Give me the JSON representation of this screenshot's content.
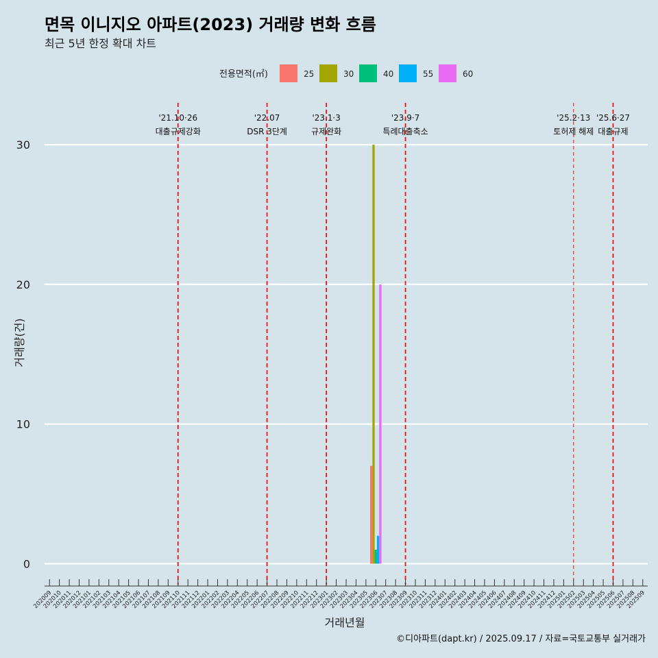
{
  "chart_data": {
    "type": "bar",
    "title": "면목 이니지오 아파트(2023) 거래량 변화 흐름",
    "subtitle": "최근 5년 한정 확대 차트",
    "xlabel": "거래년월",
    "ylabel": "거래량(건)",
    "ylim": [
      -1.5,
      33
    ],
    "yticks": [
      0,
      10,
      20,
      30
    ],
    "caption": "©디아파트(dapt.kr) / 2025.09.17 / 자료=국토교통부 실거래가",
    "legend": {
      "title": "전용면적(㎡)",
      "position": "top"
    },
    "categories": [
      "202009",
      "202010",
      "202011",
      "202012",
      "202101",
      "202102",
      "202103",
      "202104",
      "202105",
      "202106",
      "202107",
      "202108",
      "202109",
      "202110",
      "202111",
      "202112",
      "202201",
      "202202",
      "202203",
      "202204",
      "202205",
      "202206",
      "202207",
      "202208",
      "202209",
      "202210",
      "202211",
      "202212",
      "202301",
      "202302",
      "202303",
      "202304",
      "202305",
      "202306",
      "202307",
      "202308",
      "202309",
      "202310",
      "202311",
      "202312",
      "202401",
      "202402",
      "202403",
      "202404",
      "202405",
      "202406",
      "202407",
      "202408",
      "202409",
      "202410",
      "202411",
      "202412",
      "202501",
      "202502",
      "202503",
      "202504",
      "202505",
      "202506",
      "202507",
      "202508",
      "202509"
    ],
    "series": [
      {
        "name": "25",
        "color": "#f8766d",
        "values": {
          "202306": 7
        }
      },
      {
        "name": "30",
        "color": "#a3a500",
        "values": {
          "202306": 30
        }
      },
      {
        "name": "40",
        "color": "#00bf7d",
        "values": {
          "202306": 1
        }
      },
      {
        "name": "55",
        "color": "#00b0f6",
        "values": {
          "202306": 2
        }
      },
      {
        "name": "60",
        "color": "#e76bf3",
        "values": {
          "202306": 20
        }
      }
    ],
    "events": [
      {
        "month": "202110",
        "date": "'21.10·26",
        "label": "대출규제강화",
        "style": "bold"
      },
      {
        "month": "202207",
        "date": "'22.07",
        "label": "DSR 3단계",
        "style": "bold"
      },
      {
        "month": "202301",
        "date": "'23.1·3",
        "label": "규제완화",
        "style": "bold"
      },
      {
        "month": "202309",
        "date": "'23.9·7",
        "label": "특례대출축소",
        "style": "bold"
      },
      {
        "month": "202502",
        "date": "'25.2·13",
        "label": "토허제 해제",
        "style": "thin"
      },
      {
        "month": "202506",
        "date": "'25.6·27",
        "label": "대출규제",
        "style": "bold"
      }
    ]
  }
}
